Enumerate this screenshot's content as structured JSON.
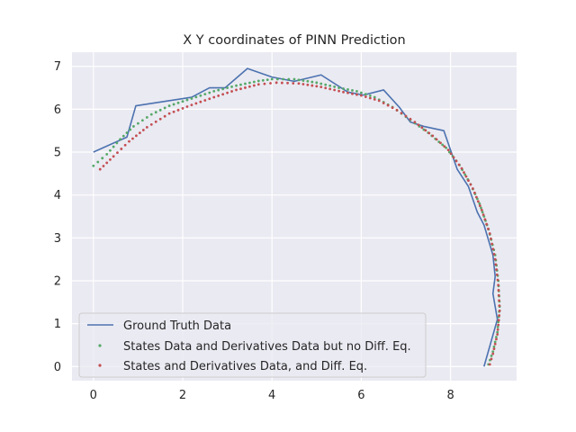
{
  "chart_data": {
    "type": "line",
    "title": "X Y coordinates of PINN Prediction",
    "xlabel": "",
    "ylabel": "",
    "xlim": [
      -0.48,
      9.48
    ],
    "ylim": [
      -0.33,
      7.33
    ],
    "xticks": [
      0,
      2,
      4,
      6,
      8
    ],
    "yticks": [
      0,
      1,
      2,
      3,
      4,
      5,
      6,
      7
    ],
    "grid": true,
    "legend_position": "lower-left",
    "series": [
      {
        "name": "Ground Truth Data",
        "style": "line",
        "color": "#4c72b0",
        "points": [
          [
            0.0,
            5.0
          ],
          [
            0.75,
            5.35
          ],
          [
            0.95,
            6.08
          ],
          [
            2.2,
            6.28
          ],
          [
            2.6,
            6.5
          ],
          [
            2.95,
            6.5
          ],
          [
            3.45,
            6.95
          ],
          [
            4.0,
            6.75
          ],
          [
            4.5,
            6.65
          ],
          [
            5.1,
            6.8
          ],
          [
            5.7,
            6.4
          ],
          [
            6.05,
            6.33
          ],
          [
            6.5,
            6.45
          ],
          [
            6.85,
            6.05
          ],
          [
            7.1,
            5.7
          ],
          [
            7.4,
            5.6
          ],
          [
            7.85,
            5.5
          ],
          [
            8.15,
            4.6
          ],
          [
            8.4,
            4.2
          ],
          [
            8.6,
            3.6
          ],
          [
            8.75,
            3.3
          ],
          [
            8.95,
            2.6
          ],
          [
            9.0,
            2.1
          ],
          [
            8.95,
            1.7
          ],
          [
            9.05,
            1.1
          ],
          [
            8.75,
            0.0
          ]
        ]
      },
      {
        "name": "States Data and Derivatives Data but no Diff. Eq.",
        "style": "scatter",
        "color": "#55a868",
        "points": [
          [
            0.0,
            4.68
          ],
          [
            0.3,
            4.95
          ],
          [
            0.6,
            5.3
          ],
          [
            0.9,
            5.6
          ],
          [
            1.3,
            5.88
          ],
          [
            1.7,
            6.08
          ],
          [
            2.2,
            6.25
          ],
          [
            2.7,
            6.42
          ],
          [
            3.2,
            6.55
          ],
          [
            3.7,
            6.66
          ],
          [
            4.0,
            6.7
          ],
          [
            4.5,
            6.7
          ],
          [
            5.0,
            6.62
          ],
          [
            5.5,
            6.5
          ],
          [
            5.9,
            6.42
          ],
          [
            6.3,
            6.28
          ],
          [
            6.7,
            6.05
          ],
          [
            7.1,
            5.75
          ],
          [
            7.5,
            5.45
          ],
          [
            7.9,
            5.1
          ],
          [
            8.2,
            4.7
          ],
          [
            8.45,
            4.25
          ],
          [
            8.65,
            3.8
          ],
          [
            8.85,
            3.2
          ],
          [
            9.0,
            2.6
          ],
          [
            9.07,
            2.0
          ],
          [
            9.1,
            1.4
          ],
          [
            9.05,
            0.8
          ],
          [
            8.95,
            0.35
          ],
          [
            8.85,
            0.05
          ]
        ]
      },
      {
        "name": "States and Derivatives Data, and Diff. Eq.",
        "style": "scatter",
        "color": "#c44e52",
        "points": [
          [
            0.15,
            4.6
          ],
          [
            0.45,
            4.9
          ],
          [
            0.8,
            5.25
          ],
          [
            1.2,
            5.58
          ],
          [
            1.7,
            5.9
          ],
          [
            2.2,
            6.1
          ],
          [
            2.7,
            6.28
          ],
          [
            3.2,
            6.45
          ],
          [
            3.7,
            6.58
          ],
          [
            4.1,
            6.62
          ],
          [
            4.6,
            6.6
          ],
          [
            5.1,
            6.52
          ],
          [
            5.6,
            6.4
          ],
          [
            6.0,
            6.32
          ],
          [
            6.4,
            6.2
          ],
          [
            6.8,
            5.98
          ],
          [
            7.2,
            5.7
          ],
          [
            7.6,
            5.38
          ],
          [
            7.95,
            5.05
          ],
          [
            8.25,
            4.62
          ],
          [
            8.5,
            4.15
          ],
          [
            8.7,
            3.65
          ],
          [
            8.88,
            3.1
          ],
          [
            9.0,
            2.5
          ],
          [
            9.07,
            1.9
          ],
          [
            9.1,
            1.3
          ],
          [
            9.05,
            0.75
          ],
          [
            8.95,
            0.3
          ],
          [
            8.88,
            0.05
          ]
        ]
      }
    ]
  }
}
